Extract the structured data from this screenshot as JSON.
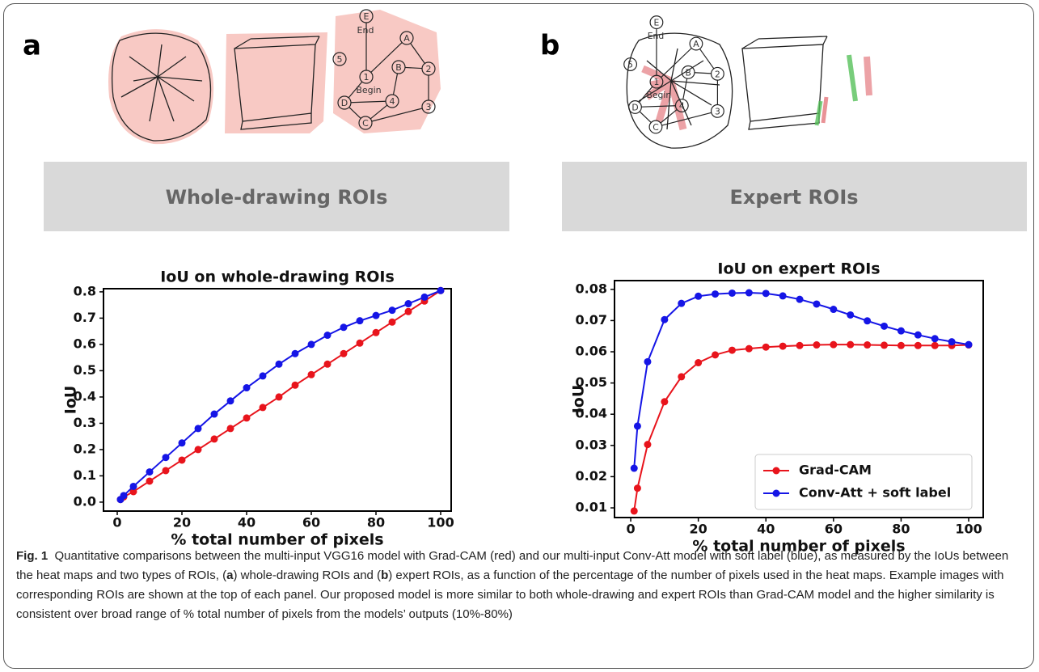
{
  "panels": [
    {
      "letter": "a",
      "banner": "Whole-drawing ROIs",
      "nodes": [
        "E",
        "A",
        "5",
        "B",
        "2",
        "1",
        "D",
        "4",
        "C",
        "3"
      ],
      "end": "End",
      "begin": "Begin"
    },
    {
      "letter": "b",
      "banner": "Expert ROIs",
      "nodes": [
        "E",
        "A",
        "5",
        "B",
        "2",
        "1",
        "D",
        "4",
        "C",
        "3"
      ],
      "end": "End",
      "begin": "Begin"
    }
  ],
  "chart_data": [
    {
      "type": "line",
      "title": "IoU on whole-drawing ROIs",
      "x_label": "% total number of pixels",
      "y_label": "IoU",
      "x": [
        1,
        2,
        5,
        10,
        15,
        20,
        25,
        30,
        35,
        40,
        45,
        50,
        55,
        60,
        65,
        70,
        75,
        80,
        85,
        90,
        95,
        100
      ],
      "series": [
        {
          "color": "#e8141c",
          "values": [
            0.01,
            0.02,
            0.04,
            0.08,
            0.12,
            0.16,
            0.2,
            0.24,
            0.28,
            0.32,
            0.36,
            0.4,
            0.445,
            0.485,
            0.525,
            0.565,
            0.605,
            0.645,
            0.685,
            0.725,
            0.765,
            0.805
          ]
        },
        {
          "color": "#1515e6",
          "values": [
            0.01,
            0.025,
            0.06,
            0.115,
            0.17,
            0.225,
            0.28,
            0.335,
            0.385,
            0.435,
            0.48,
            0.525,
            0.565,
            0.6,
            0.635,
            0.665,
            0.69,
            0.71,
            0.73,
            0.755,
            0.78,
            0.805
          ]
        }
      ],
      "xlim": [
        -4.25,
        103.25
      ],
      "xticks": [
        0,
        20,
        40,
        60,
        80,
        100
      ],
      "ylim": [
        -0.034,
        0.812
      ],
      "yticks": [
        {
          "value": 0,
          "label": "0.0"
        },
        0.1,
        0.2,
        0.3,
        0.4,
        0.5,
        0.6,
        0.7,
        0.8
      ]
    },
    {
      "type": "line",
      "title": "IoU on expert ROIs",
      "x_label": "% total number of pixels",
      "y_label": "IoU",
      "x": [
        1,
        2,
        5,
        10,
        15,
        20,
        25,
        30,
        35,
        40,
        45,
        50,
        55,
        60,
        65,
        70,
        75,
        80,
        85,
        90,
        95,
        100
      ],
      "series": [
        {
          "name": "Grad-CAM",
          "color": "#e8141c",
          "values": [
            0.009,
            0.0163,
            0.0303,
            0.044,
            0.052,
            0.0565,
            0.059,
            0.0605,
            0.061,
            0.0615,
            0.0618,
            0.062,
            0.0622,
            0.0623,
            0.0623,
            0.0622,
            0.0621,
            0.062,
            0.062,
            0.062,
            0.062,
            0.0622
          ]
        },
        {
          "name": "Conv-Att + soft label",
          "color": "#1515e6",
          "values": [
            0.0227,
            0.0362,
            0.0568,
            0.0703,
            0.0755,
            0.0778,
            0.0785,
            0.0788,
            0.0789,
            0.0787,
            0.0779,
            0.0768,
            0.0753,
            0.0736,
            0.0718,
            0.0699,
            0.0682,
            0.0667,
            0.0654,
            0.0642,
            0.0632,
            0.0623
          ]
        }
      ],
      "xlim": [
        -4.8,
        104.3
      ],
      "xticks": [
        0,
        20,
        40,
        60,
        80,
        100
      ],
      "ylim": [
        0.0069,
        0.0828
      ],
      "yticks": [
        0.01,
        0.02,
        0.03,
        0.04,
        0.05,
        0.06,
        0.07,
        0.08
      ],
      "legend": "lower right"
    }
  ],
  "caption": {
    "parts": [
      "Fig. 1",
      "Quantitative comparisons between the multi-input VGG16 model with Grad-CAM (red) and our multi-input Conv-Att model with soft label (blue), as measured by the IoUs between the heat maps and two types of ROIs, (",
      "a",
      ") whole-drawing ROIs and (",
      "b",
      ") expert ROIs, as a function of the percentage of the number of pixels used in the heat maps. Example images with corresponding ROIs are shown at the top of each panel. Our proposed model is more similar to both whole-drawing and expert ROIs than Grad-CAM model and the higher similarity is consistent over broad range of % total number of pixels from the models’ outputs (10%-80%)"
    ]
  }
}
